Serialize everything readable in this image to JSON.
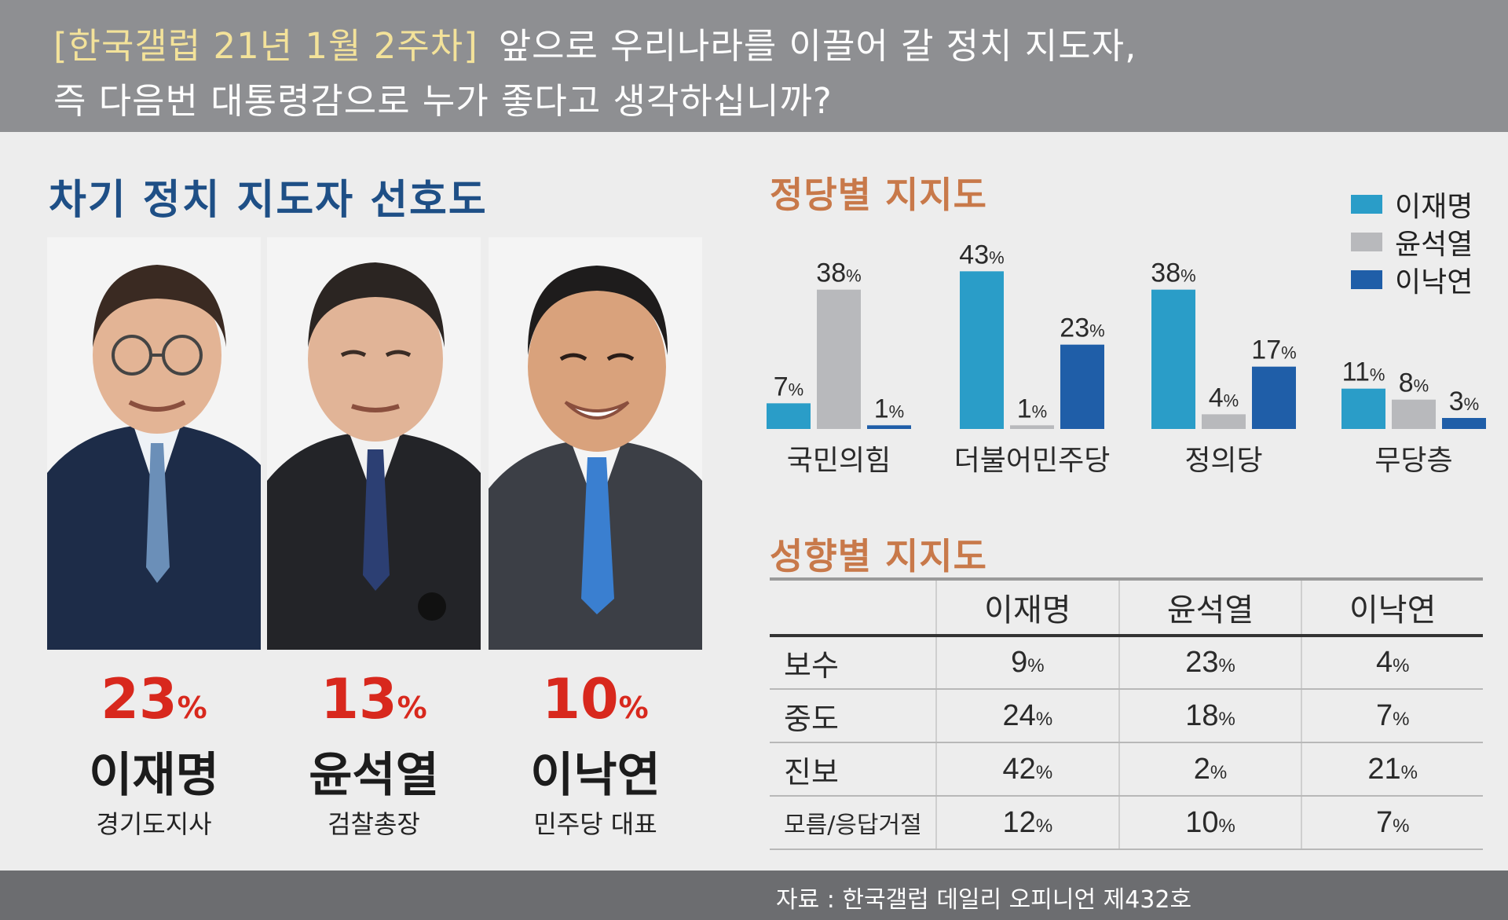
{
  "header": {
    "source_tag": "[한국갤럽 21년 1월 2주차]",
    "question_line1": "앞으로 우리나라를 이끌어 갈 정치 지도자,",
    "question_line2": "즉 다음번 대통령감으로 누가 좋다고 생각하십니까?"
  },
  "left_title": "차기 정치 지도자 선호도",
  "candidates": [
    {
      "pct": "23",
      "unit": "%",
      "name": "이재명",
      "role": "경기도지사"
    },
    {
      "pct": "13",
      "unit": "%",
      "name": "윤석열",
      "role": "검찰총장"
    },
    {
      "pct": "10",
      "unit": "%",
      "name": "이낙연",
      "role": "민주당 대표"
    }
  ],
  "colors": {
    "lee_jm": "#2a9dc8",
    "yoon": "#b8b9bc",
    "lee_ny": "#1f5ea8",
    "accent_red": "#d8281d",
    "title_blue": "#1e4f86",
    "section_orange": "#c8794a"
  },
  "chart_data": [
    {
      "type": "bar",
      "title": "정당별 지지도",
      "categories": [
        "국민의힘",
        "더불어민주당",
        "정의당",
        "무당층"
      ],
      "series": [
        {
          "name": "이재명",
          "values": [
            7,
            43,
            38,
            11
          ],
          "color": "#2a9dc8"
        },
        {
          "name": "윤석열",
          "values": [
            38,
            1,
            4,
            8
          ],
          "color": "#b8b9bc"
        },
        {
          "name": "이낙연",
          "values": [
            1,
            23,
            17,
            3
          ],
          "color": "#1f5ea8"
        }
      ],
      "unit": "%",
      "legend": "top-right",
      "grid": false
    },
    {
      "type": "table",
      "title": "성향별 지지도",
      "columns": [
        "",
        "이재명",
        "윤석열",
        "이낙연"
      ],
      "rows": [
        {
          "label": "보수",
          "values": [
            "9",
            "23",
            "4"
          ]
        },
        {
          "label": "중도",
          "values": [
            "24",
            "18",
            "7"
          ]
        },
        {
          "label": "진보",
          "values": [
            "42",
            "2",
            "21"
          ]
        },
        {
          "label": "모름/응답거절",
          "values": [
            "12",
            "10",
            "7"
          ]
        }
      ],
      "unit": "%"
    }
  ],
  "footer": "자료 : 한국갤럽 데일리 오피니언 제432호"
}
